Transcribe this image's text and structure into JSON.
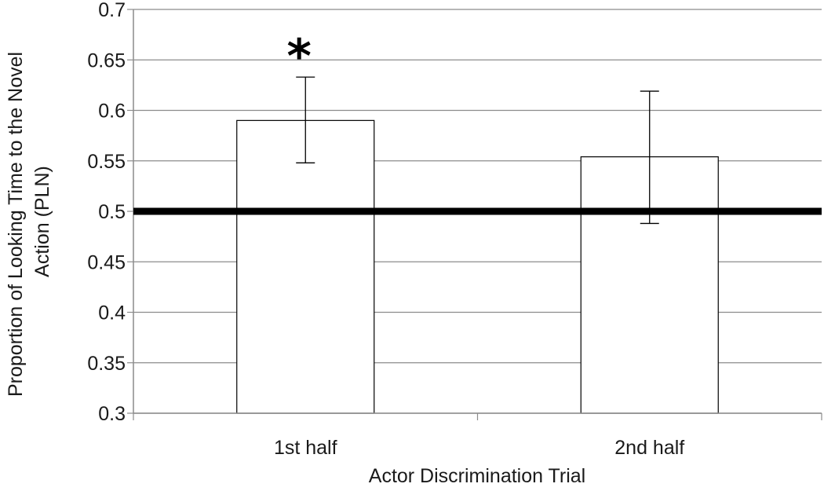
{
  "chart_data": {
    "type": "bar",
    "title": "",
    "xlabel": "Actor Discrimination Trial",
    "ylabel_lines": [
      "Proportion of Looking Time to the Novel",
      "Action (PLN)"
    ],
    "ylim": [
      0.3,
      0.7
    ],
    "yticks": [
      "0.3",
      "0.35",
      "0.4",
      "0.45",
      "0.5",
      "0.55",
      "0.6",
      "0.65",
      "0.7"
    ],
    "categories": [
      "1st half",
      "2nd half"
    ],
    "values": [
      0.59,
      0.554
    ],
    "error_low": [
      0.548,
      0.488
    ],
    "error_high": [
      0.633,
      0.619
    ],
    "reference_line": 0.5,
    "annotations": [
      {
        "category_index": 0,
        "text": "*"
      }
    ],
    "grid": true,
    "legend": "none",
    "colors": {
      "bar_fill": "#ffffff",
      "bar_stroke": "#000000",
      "grid": "#8c8c8c",
      "reference_line": "#000000"
    }
  }
}
